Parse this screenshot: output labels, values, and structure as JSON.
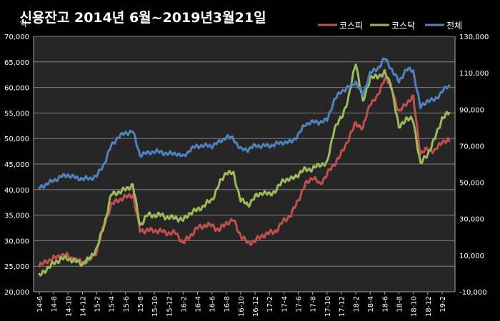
{
  "chart_data": {
    "type": "line",
    "title": "신용잔고 2014년 6월~2019년3월21일",
    "ylabel_left": "억",
    "y_left_lim": [
      20000,
      70000
    ],
    "y_left_ticks": [
      "20,000",
      "25,000",
      "30,000",
      "35,000",
      "40,000",
      "45,000",
      "50,000",
      "55,000",
      "60,000",
      "65,000",
      "70,000"
    ],
    "y_right_lim": [
      -10000,
      130000
    ],
    "y_right_ticks": [
      "-10,000",
      "10,000",
      "30,000",
      "50,000",
      "70,000",
      "90,000",
      "110,000",
      "130,000"
    ],
    "x_tick_labels": [
      "14-6",
      "14-8",
      "14-10",
      "14-12",
      "15-2",
      "15-4",
      "15-6",
      "15-8",
      "15-10",
      "15-12",
      "16-2",
      "16-4",
      "16-6",
      "16-8",
      "16-10",
      "16-12",
      "17-2",
      "17-4",
      "17-6",
      "17-8",
      "17-10",
      "17-12",
      "18-2",
      "18-4",
      "18-6",
      "18-8",
      "18-10",
      "18-12",
      "19-2"
    ],
    "grid": true,
    "legend_position": "top-right",
    "x": [
      "14-6",
      "14-7",
      "14-8",
      "14-9",
      "14-10",
      "14-11",
      "14-12",
      "15-1",
      "15-2",
      "15-3",
      "15-4",
      "15-5",
      "15-6",
      "15-7",
      "15-8",
      "15-9",
      "15-10",
      "15-11",
      "15-12",
      "16-1",
      "16-2",
      "16-3",
      "16-4",
      "16-5",
      "16-6",
      "16-7",
      "16-8",
      "16-9",
      "16-10",
      "16-11",
      "16-12",
      "17-1",
      "17-2",
      "17-3",
      "17-4",
      "17-5",
      "17-6",
      "17-7",
      "17-8",
      "17-9",
      "17-10",
      "17-11",
      "17-12",
      "18-1",
      "18-2",
      "18-3",
      "18-4",
      "18-5",
      "18-6",
      "18-7",
      "18-8",
      "18-9",
      "18-10",
      "18-11",
      "18-12",
      "19-1",
      "19-2",
      "19-3"
    ],
    "series": [
      {
        "name": "코스피",
        "axis": "left",
        "color": "#c0504d",
        "values": [
          25000,
          26000,
          26500,
          27200,
          27000,
          26200,
          25800,
          26200,
          28000,
          33000,
          37000,
          38000,
          38500,
          39000,
          32000,
          32000,
          32000,
          31800,
          31500,
          31500,
          29500,
          31000,
          32500,
          33000,
          33000,
          32000,
          33500,
          34000,
          31000,
          29500,
          30000,
          31000,
          31500,
          32000,
          34000,
          35000,
          38000,
          41000,
          42500,
          41000,
          43000,
          45000,
          47000,
          50000,
          53000,
          52000,
          57000,
          58000,
          62000,
          60000,
          55000,
          57000,
          58000,
          47000,
          48000,
          47500,
          49500,
          49500
        ]
      },
      {
        "name": "코스닥",
        "axis": "left",
        "color": "#9bbb59",
        "values": [
          23000,
          24500,
          25500,
          26500,
          26500,
          26000,
          25500,
          26500,
          28500,
          33000,
          39000,
          39500,
          40000,
          41000,
          33000,
          35000,
          35000,
          35000,
          34500,
          34500,
          34000,
          35500,
          36000,
          37000,
          38000,
          41000,
          43500,
          43000,
          38000,
          37000,
          38500,
          39500,
          39000,
          40000,
          42000,
          42000,
          43000,
          44000,
          44000,
          45000,
          45000,
          52000,
          54000,
          58000,
          65000,
          57000,
          62000,
          62000,
          63000,
          60000,
          52000,
          54000,
          53500,
          45000,
          47000,
          50000,
          54000,
          55000
        ]
      },
      {
        "name": "전체",
        "axis": "right",
        "color": "#4f81bd",
        "values": [
          47000,
          49000,
          51000,
          53000,
          54000,
          52500,
          52000,
          52000,
          53500,
          60000,
          70000,
          75000,
          77000,
          78000,
          65000,
          66000,
          67000,
          66500,
          65500,
          66000,
          64000,
          68000,
          70000,
          70000,
          70000,
          72000,
          75000,
          74000,
          68000,
          68000,
          70000,
          70000,
          70000,
          71000,
          72000,
          72000,
          76000,
          82000,
          83000,
          83000,
          84000,
          95000,
          100000,
          102000,
          105000,
          98000,
          110000,
          112000,
          118000,
          112000,
          105000,
          112000,
          111000,
          91000,
          95000,
          95000,
          100000,
          103000
        ]
      }
    ]
  }
}
